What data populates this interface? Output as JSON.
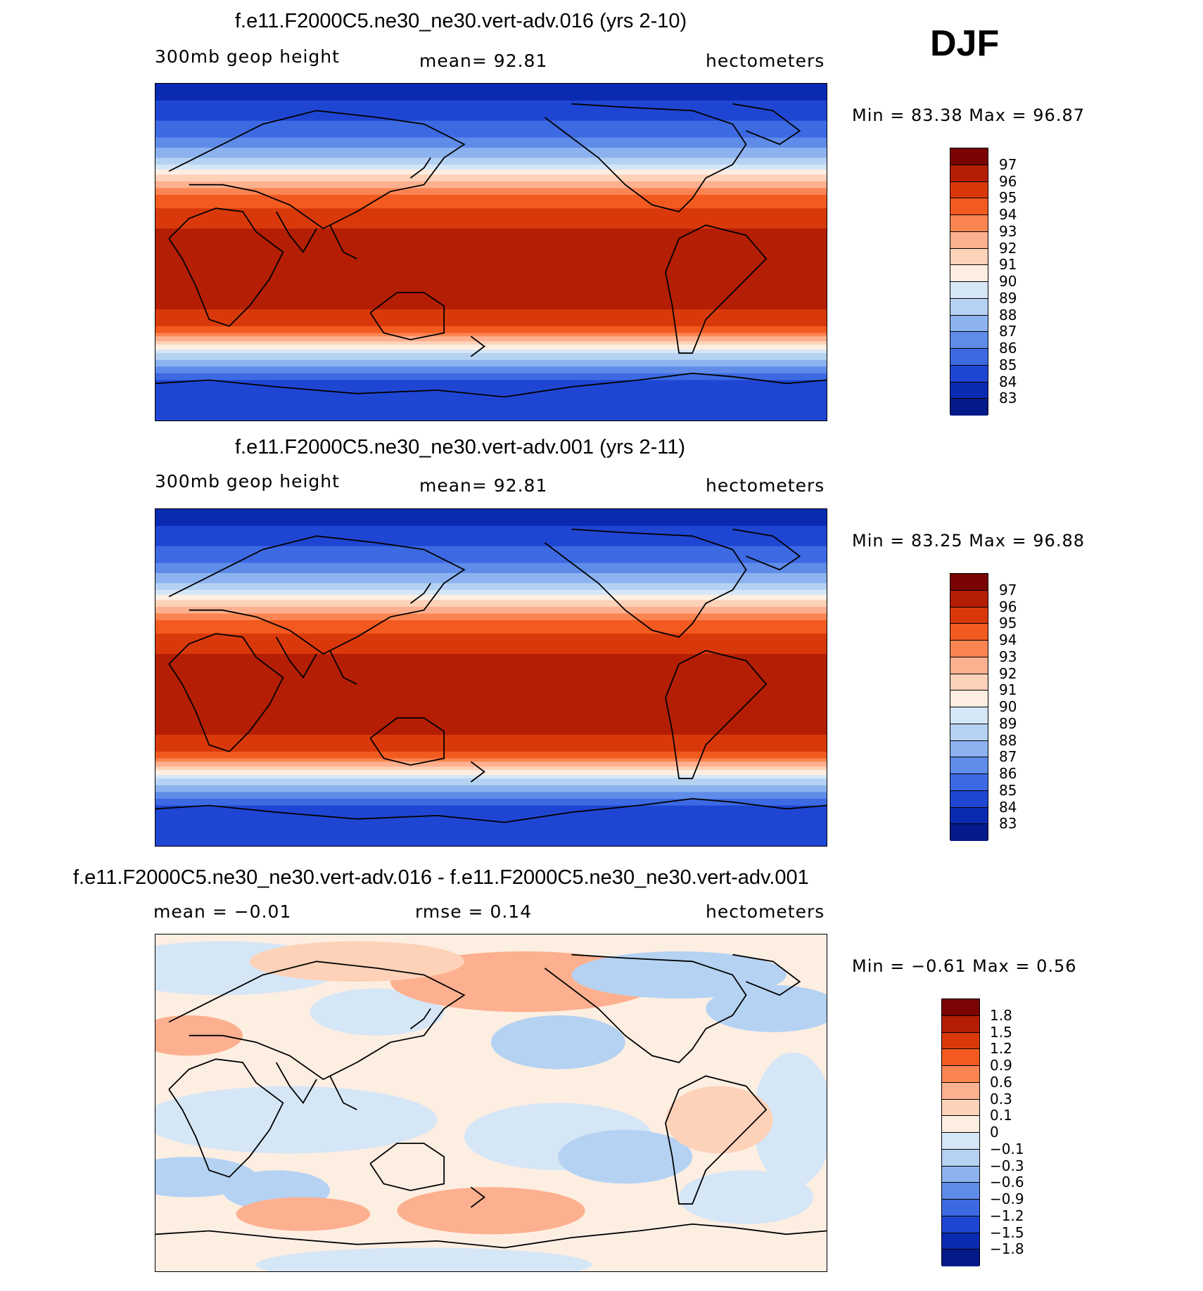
{
  "season": "DJF",
  "panels": [
    {
      "title": "f.e11.F2000C5.ne30_ne30.vert-adv.016 (yrs 2-10)",
      "left_label": "300mb geop height",
      "center_label": "mean=   92.81",
      "units": "hectometers",
      "minmax": "Min =   83.38  Max =   96.87",
      "colorbar_labels": [
        "97",
        "96",
        "95",
        "94",
        "93",
        "92",
        "91",
        "90",
        "89",
        "88",
        "87",
        "86",
        "85",
        "84",
        "83"
      ]
    },
    {
      "title": "f.e11.F2000C5.ne30_ne30.vert-adv.001 (yrs 2-11)",
      "left_label": "300mb geop height",
      "center_label": "mean=   92.81",
      "units": "hectometers",
      "minmax": "Min =   83.25  Max =   96.88",
      "colorbar_labels": [
        "97",
        "96",
        "95",
        "94",
        "93",
        "92",
        "91",
        "90",
        "89",
        "88",
        "87",
        "86",
        "85",
        "84",
        "83"
      ]
    },
    {
      "title": "f.e11.F2000C5.ne30_ne30.vert-adv.016 - f.e11.F2000C5.ne30_ne30.vert-adv.001",
      "left_label": "mean =   −0.01",
      "center_label": "rmse =    0.14",
      "units": "hectometers",
      "minmax": "Min =   −0.61  Max =    0.56",
      "colorbar_labels": [
        "1.8",
        "1.5",
        "1.2",
        "0.9",
        "0.6",
        "0.3",
        "0.1",
        "0",
        "−0.1",
        "−0.3",
        "−0.6",
        "−0.9",
        "−1.2",
        "−1.5",
        "−1.8"
      ]
    }
  ],
  "colors": {
    "scale": [
      "#7a0403",
      "#b31e05",
      "#d9390a",
      "#f25a20",
      "#fb8552",
      "#fdb08f",
      "#fdd2b9",
      "#fdeee2",
      "#d5e6f7",
      "#b5d2f3",
      "#8cb2ef",
      "#5f8ce9",
      "#3d6ae3",
      "#1f46d3",
      "#0b2ab2",
      "#041a8a"
    ],
    "coastline": "#000000"
  }
}
